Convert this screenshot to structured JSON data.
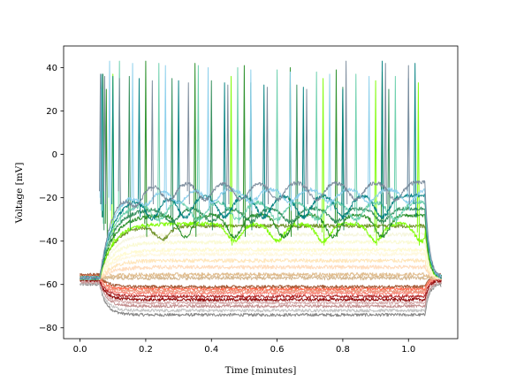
{
  "chart_data": {
    "type": "line",
    "title": "",
    "xlabel": "Time [minutes]",
    "ylabel": "Voltage [mV]",
    "xlim": [
      -0.05,
      1.15
    ],
    "ylim": [
      -85,
      50
    ],
    "xticks": [
      0.0,
      0.2,
      0.4,
      0.6,
      0.8,
      1.0
    ],
    "xtick_labels": [
      "0.0",
      "0.2",
      "0.4",
      "0.6",
      "0.8",
      "1.0"
    ],
    "yticks": [
      -80,
      -60,
      -40,
      -20,
      0,
      20,
      40
    ],
    "ytick_labels": [
      "−80",
      "−60",
      "−40",
      "−20",
      "0",
      "20",
      "40"
    ],
    "grid": false,
    "legend": "none",
    "stimulus_window": [
      0.06,
      1.05
    ],
    "baseline_window": [
      0.0,
      1.1
    ],
    "series": [
      {
        "color": "#808080",
        "kind": "hyper",
        "steady": -74,
        "baseline": -60
      },
      {
        "color": "#bfbfbf",
        "kind": "hyper",
        "steady": -72,
        "baseline": -59.5
      },
      {
        "color": "#c08a8a",
        "kind": "hyper",
        "steady": -70,
        "baseline": -59
      },
      {
        "color": "#d4a5a5",
        "kind": "hyper",
        "steady": -68.5,
        "baseline": -58.5
      },
      {
        "color": "#8b0000",
        "kind": "hyper",
        "steady": -67,
        "baseline": -58
      },
      {
        "color": "#b22222",
        "kind": "hyper",
        "steady": -65.5,
        "baseline": -57.5
      },
      {
        "color": "#fa8072",
        "kind": "hyper",
        "steady": -64,
        "baseline": -57
      },
      {
        "color": "#e9967a",
        "kind": "hyper",
        "steady": -63,
        "baseline": -56.5
      },
      {
        "color": "#ff6347",
        "kind": "hyper",
        "steady": -62,
        "baseline": -56
      },
      {
        "color": "#a0522d",
        "kind": "hyper",
        "steady": -61,
        "baseline": -55.5
      },
      {
        "color": "#d2b48c",
        "kind": "sub",
        "steady": -57,
        "baseline": -57
      },
      {
        "color": "#deb887",
        "kind": "sub",
        "steady": -55.5,
        "baseline": -57
      },
      {
        "color": "#ffdab9",
        "kind": "sub",
        "steady": -52,
        "baseline": -57
      },
      {
        "color": "#ffe4b5",
        "kind": "sub",
        "steady": -49,
        "baseline": -57
      },
      {
        "color": "#fff8dc",
        "kind": "sub",
        "steady": -46,
        "baseline": -57
      },
      {
        "color": "#fffacd",
        "kind": "sub",
        "steady": -44,
        "baseline": -57
      },
      {
        "color": "#fafad2",
        "kind": "sub",
        "steady": -40.5,
        "baseline": -57
      },
      {
        "color": "#f5f5dc",
        "kind": "sub",
        "steady": -37,
        "baseline": -57
      },
      {
        "color": "#6b8e23",
        "kind": "osc",
        "steady": -33,
        "baseline": -57,
        "troughs": [
          0.23
        ],
        "spikes": []
      },
      {
        "color": "#7cfc00",
        "kind": "osc",
        "steady": -32,
        "baseline": -57,
        "troughs": [
          0.45,
          0.58,
          0.72,
          0.88,
          1.02
        ],
        "spikes": [
          0.1,
          0.46,
          0.74,
          0.9,
          1.03
        ]
      },
      {
        "color": "#228b22",
        "kind": "osc",
        "steady": -28,
        "baseline": -57,
        "troughs": [
          0.3,
          0.45,
          0.6,
          0.75,
          0.9
        ],
        "spikes": [
          0.08,
          0.2,
          0.35,
          0.5,
          0.64,
          0.78,
          0.92
        ]
      },
      {
        "color": "#2e8b57",
        "kind": "osc",
        "steady": -25,
        "baseline": -57,
        "troughs": [
          0.26,
          0.38,
          0.5,
          0.62,
          0.76,
          0.9
        ],
        "spikes": [
          0.07,
          0.15,
          0.28,
          0.4,
          0.52,
          0.66,
          0.8,
          0.94
        ]
      },
      {
        "color": "#66cdaa",
        "kind": "osc",
        "steady": -22,
        "baseline": -57,
        "troughs": [
          0.22,
          0.34,
          0.46,
          0.58,
          0.7,
          0.82,
          0.94
        ],
        "spikes": [
          0.068,
          0.12,
          0.24,
          0.36,
          0.48,
          0.6,
          0.72,
          0.84,
          0.96
        ]
      },
      {
        "color": "#008080",
        "kind": "osc",
        "steady": -19,
        "baseline": -57,
        "troughs": [
          0.2,
          0.3,
          0.42,
          0.54,
          0.66,
          0.78,
          0.9
        ],
        "spikes": [
          0.066,
          0.1,
          0.18,
          0.3,
          0.44,
          0.56,
          0.68,
          0.8,
          0.92,
          1.02
        ]
      },
      {
        "color": "#87ceeb",
        "kind": "osc",
        "steady": -16,
        "baseline": -57,
        "troughs": [
          0.18,
          0.28,
          0.38,
          0.5,
          0.62,
          0.74,
          0.86,
          0.98
        ],
        "spikes": [
          0.064,
          0.09,
          0.16,
          0.26,
          0.39,
          0.52,
          0.64,
          0.76,
          0.88,
          1.0
        ]
      },
      {
        "color": "#778899",
        "kind": "osc",
        "steady": -13,
        "baseline": -57,
        "troughs": [
          0.15,
          0.25,
          0.36,
          0.47,
          0.58,
          0.7,
          0.82,
          0.94
        ],
        "spikes": [
          0.062,
          0.075,
          0.12,
          0.22,
          0.33,
          0.45,
          0.57,
          0.69,
          0.81,
          0.93,
          1.0
        ]
      }
    ]
  }
}
